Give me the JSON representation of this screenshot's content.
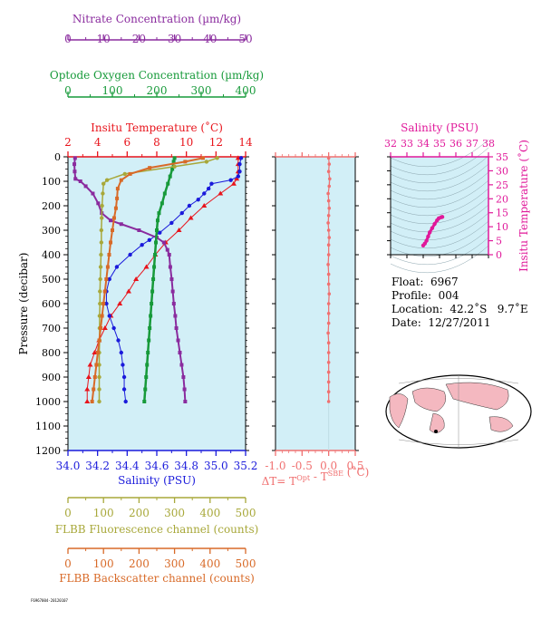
{
  "info": {
    "float": "Float:  6967",
    "profile": "Profile:  004",
    "location": "Location:  42.2˚S   9.7˚E",
    "date": "Date:  12/27/2011"
  },
  "footnote": "F6967004-20120107",
  "colors": {
    "temperature": "#e8141c",
    "salinity": "#1a1adb",
    "nitrate": "#8a2b9e",
    "oxygen": "#179a3a",
    "fluorescence": "#a8a83a",
    "backscatter": "#d86a28",
    "delta_t": "#f07070",
    "ts": "#e0189a",
    "panel_bg": "#d2eff7",
    "axis_dark": "#6b6b00"
  },
  "chart_data": [
    {
      "type": "line",
      "name": "profiles",
      "ylabel": "Pressure (decibar)",
      "y_ticks": [
        0,
        100,
        200,
        300,
        400,
        500,
        600,
        700,
        800,
        900,
        1000,
        1100,
        1200
      ],
      "ylim": [
        0,
        1200
      ],
      "y_inverted": true,
      "axes": {
        "temperature": {
          "label": "Insitu Temperature (˚C)",
          "range": [
            2,
            14
          ],
          "ticks": [
            2,
            4,
            6,
            8,
            10,
            12,
            14
          ]
        },
        "salinity": {
          "label": "Salinity (PSU)",
          "range": [
            34.0,
            35.2
          ],
          "ticks": [
            "34.0",
            "34.2",
            "34.4",
            "34.6",
            "34.8",
            "35.0",
            "35.2"
          ]
        },
        "nitrate": {
          "label": "Nitrate Concentration (µm/kg)",
          "range": [
            0,
            50
          ],
          "ticks": [
            0,
            10,
            20,
            30,
            40,
            50
          ]
        },
        "oxygen": {
          "label": "Optode Oxygen Concentration (µm/kg)",
          "range": [
            0,
            400
          ],
          "ticks": [
            0,
            100,
            200,
            300,
            400
          ]
        },
        "fluorescence": {
          "label": "FLBB Fluorescence channel (counts)",
          "range": [
            0,
            500
          ],
          "ticks": [
            0,
            100,
            200,
            300,
            400,
            500
          ]
        },
        "backscatter": {
          "label": "FLBB Backscatter channel (counts)",
          "range": [
            0,
            500
          ],
          "ticks": [
            0,
            100,
            200,
            300,
            400,
            500
          ]
        }
      },
      "series": [
        {
          "key": "temperature",
          "axis": "temperature",
          "points": [
            [
              13.5,
              5
            ],
            [
              13.5,
              30
            ],
            [
              13.5,
              60
            ],
            [
              13.4,
              90
            ],
            [
              13.2,
              110
            ],
            [
              12.3,
              150
            ],
            [
              11.2,
              200
            ],
            [
              10.3,
              250
            ],
            [
              9.5,
              300
            ],
            [
              8.6,
              350
            ],
            [
              7.9,
              400
            ],
            [
              7.3,
              450
            ],
            [
              6.6,
              500
            ],
            [
              6.1,
              550
            ],
            [
              5.5,
              600
            ],
            [
              4.9,
              650
            ],
            [
              4.5,
              700
            ],
            [
              4.1,
              750
            ],
            [
              3.8,
              800
            ],
            [
              3.5,
              850
            ],
            [
              3.4,
              900
            ],
            [
              3.3,
              950
            ],
            [
              3.3,
              1000
            ]
          ]
        },
        {
          "key": "salinity",
          "axis": "salinity",
          "points": [
            [
              35.17,
              5
            ],
            [
              35.16,
              30
            ],
            [
              35.16,
              60
            ],
            [
              35.15,
              80
            ],
            [
              35.1,
              95
            ],
            [
              34.97,
              110
            ],
            [
              34.95,
              130
            ],
            [
              34.92,
              150
            ],
            [
              34.88,
              175
            ],
            [
              34.82,
              200
            ],
            [
              34.77,
              230
            ],
            [
              34.7,
              270
            ],
            [
              34.62,
              310
            ],
            [
              34.55,
              340
            ],
            [
              34.5,
              360
            ],
            [
              34.42,
              400
            ],
            [
              34.33,
              450
            ],
            [
              34.28,
              500
            ],
            [
              34.26,
              550
            ],
            [
              34.26,
              600
            ],
            [
              34.28,
              650
            ],
            [
              34.31,
              700
            ],
            [
              34.34,
              750
            ],
            [
              34.36,
              800
            ],
            [
              34.37,
              850
            ],
            [
              34.38,
              900
            ],
            [
              34.38,
              950
            ],
            [
              34.39,
              1000
            ]
          ]
        },
        {
          "key": "nitrate",
          "axis": "nitrate",
          "points": [
            [
              2,
              5
            ],
            [
              1.8,
              30
            ],
            [
              1.9,
              60
            ],
            [
              2.1,
              90
            ],
            [
              3.5,
              100
            ],
            [
              5,
              120
            ],
            [
              7,
              150
            ],
            [
              8.5,
              190
            ],
            [
              9.5,
              230
            ],
            [
              12,
              260
            ],
            [
              15,
              275
            ],
            [
              20,
              300
            ],
            [
              25,
              330
            ],
            [
              27,
              350
            ],
            [
              28,
              380
            ],
            [
              28.5,
              400
            ],
            [
              28.8,
              450
            ],
            [
              29.2,
              500
            ],
            [
              29.5,
              550
            ],
            [
              29.8,
              600
            ],
            [
              30.2,
              650
            ],
            [
              30.5,
              700
            ],
            [
              31,
              750
            ],
            [
              31.5,
              800
            ],
            [
              32,
              850
            ],
            [
              32.5,
              900
            ],
            [
              32.8,
              950
            ],
            [
              33,
              1000
            ]
          ]
        },
        {
          "key": "oxygen",
          "axis": "oxygen",
          "points": [
            [
              240,
              5
            ],
            [
              238,
              20
            ],
            [
              235,
              50
            ],
            [
              230,
              80
            ],
            [
              225,
              110
            ],
            [
              218,
              150
            ],
            [
              212,
              190
            ],
            [
              205,
              230
            ],
            [
              202,
              260
            ],
            [
              200,
              300
            ],
            [
              198,
              350
            ],
            [
              196,
              400
            ],
            [
              194,
              450
            ],
            [
              192,
              500
            ],
            [
              190,
              550
            ],
            [
              188,
              600
            ],
            [
              186,
              650
            ],
            [
              184,
              700
            ],
            [
              182,
              750
            ],
            [
              180,
              800
            ],
            [
              178,
              850
            ],
            [
              176,
              900
            ],
            [
              174,
              950
            ],
            [
              172,
              1000
            ]
          ]
        },
        {
          "key": "fluorescence",
          "axis": "fluorescence",
          "points": [
            [
              420,
              5
            ],
            [
              390,
              20
            ],
            [
              300,
              40
            ],
            [
              160,
              70
            ],
            [
              110,
              95
            ],
            [
              100,
              110
            ],
            [
              98,
              150
            ],
            [
              96,
              200
            ],
            [
              95,
              250
            ],
            [
              94,
              300
            ],
            [
              94,
              350
            ],
            [
              93,
              400
            ],
            [
              92,
              450
            ],
            [
              91,
              500
            ],
            [
              90,
              550
            ],
            [
              90,
              600
            ],
            [
              89,
              650
            ],
            [
              89,
              700
            ],
            [
              89,
              750
            ],
            [
              88,
              800
            ],
            [
              88,
              850
            ],
            [
              88,
              900
            ],
            [
              88,
              950
            ],
            [
              88,
              1000
            ]
          ]
        },
        {
          "key": "backscatter",
          "axis": "backscatter",
          "points": [
            [
              380,
              5
            ],
            [
              330,
              20
            ],
            [
              230,
              45
            ],
            [
              175,
              70
            ],
            [
              150,
              95
            ],
            [
              140,
              130
            ],
            [
              138,
              170
            ],
            [
              135,
              210
            ],
            [
              130,
              250
            ],
            [
              125,
              300
            ],
            [
              120,
              350
            ],
            [
              116,
              400
            ],
            [
              112,
              450
            ],
            [
              108,
              500
            ],
            [
              104,
              550
            ],
            [
              100,
              600
            ],
            [
              96,
              650
            ],
            [
              92,
              700
            ],
            [
              88,
              750
            ],
            [
              84,
              800
            ],
            [
              80,
              850
            ],
            [
              76,
              900
            ],
            [
              72,
              950
            ],
            [
              68,
              1000
            ]
          ]
        }
      ]
    },
    {
      "type": "line",
      "name": "delta_t",
      "xlabel": "ΔT= T⁰ᵖᵗ - Tˢᴮᴱ (˚C)",
      "xlabel_main": "ΔT= T",
      "xlabel_sup1": "Opt",
      "xlabel_mid": " - T",
      "xlabel_sup2": "SBE",
      "xlabel_end": " (˚C)",
      "xlim": [
        -1.0,
        0.5
      ],
      "x_ticks": [
        "-1.0",
        "-0.5",
        "0.0",
        "0.5"
      ],
      "ylim": [
        0,
        1200
      ],
      "points": [
        [
          0.0,
          5
        ],
        [
          0.01,
          30
        ],
        [
          0.0,
          60
        ],
        [
          0.02,
          90
        ],
        [
          0.01,
          120
        ],
        [
          -0.01,
          150
        ],
        [
          0.0,
          180
        ],
        [
          0.01,
          210
        ],
        [
          0.0,
          240
        ],
        [
          -0.01,
          270
        ],
        [
          0.0,
          300
        ],
        [
          0.01,
          330
        ],
        [
          0.0,
          360
        ],
        [
          0.0,
          400
        ],
        [
          -0.01,
          440
        ],
        [
          0.0,
          480
        ],
        [
          0.0,
          520
        ],
        [
          0.01,
          560
        ],
        [
          0.0,
          600
        ],
        [
          0.0,
          640
        ],
        [
          0.0,
          680
        ],
        [
          -0.01,
          720
        ],
        [
          0.0,
          760
        ],
        [
          0.0,
          800
        ],
        [
          0.0,
          840
        ],
        [
          0.0,
          880
        ],
        [
          0.0,
          920
        ],
        [
          0.0,
          960
        ],
        [
          0.0,
          1000
        ]
      ]
    },
    {
      "type": "scatter",
      "name": "ts_diagram",
      "xlabel": "Salinity (PSU)",
      "ylabel": "Insitu Temperature (˚C)",
      "xlim": [
        32,
        38
      ],
      "ylim": [
        0,
        35
      ],
      "x_ticks": [
        32,
        33,
        34,
        35,
        36,
        37,
        38
      ],
      "y_ticks": [
        0,
        5,
        10,
        15,
        20,
        25,
        30,
        35
      ],
      "points": [
        [
          34.0,
          3.3
        ],
        [
          34.1,
          4.0
        ],
        [
          34.2,
          5.0
        ],
        [
          34.3,
          6.5
        ],
        [
          34.4,
          8.0
        ],
        [
          34.55,
          9.5
        ],
        [
          34.7,
          11.0
        ],
        [
          34.85,
          12.3
        ],
        [
          34.95,
          13.0
        ],
        [
          35.1,
          13.4
        ],
        [
          35.17,
          13.5
        ]
      ]
    }
  ]
}
